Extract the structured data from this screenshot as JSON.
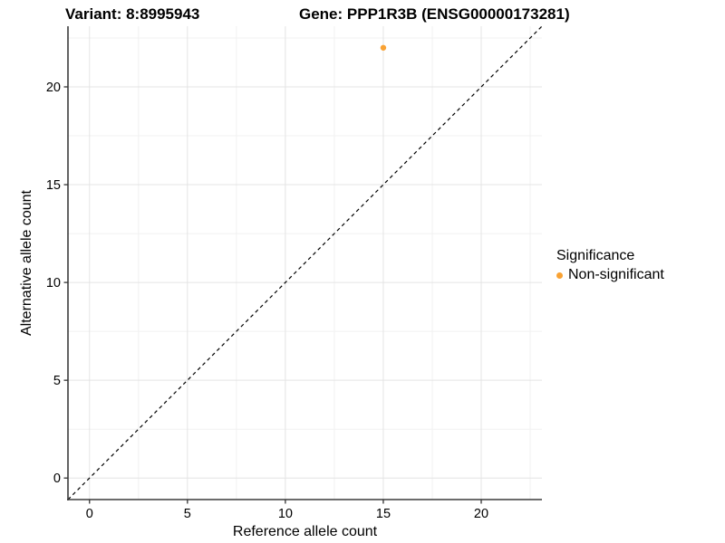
{
  "header": {
    "title_variant": "Variant: 8:8995943",
    "title_gene": "Gene: PPP1R3B (ENSG00000173281)"
  },
  "chart_data": {
    "type": "scatter",
    "title_left": "Variant: 8:8995943",
    "title_right": "Gene: PPP1R3B (ENSG00000173281)",
    "xlabel": "Reference allele count",
    "ylabel": "Alternative allele count",
    "xlim": [
      0,
      22
    ],
    "ylim": [
      0,
      22
    ],
    "expansion": 0.05,
    "x_ticks": [
      0,
      5,
      10,
      15,
      20
    ],
    "y_ticks": [
      0,
      5,
      10,
      15,
      20
    ],
    "x_minor_ticks": [
      2.5,
      7.5,
      12.5,
      17.5,
      22.5
    ],
    "y_minor_ticks": [
      2.5,
      7.5,
      12.5,
      17.5,
      22.5
    ],
    "grid": "major-and-minor",
    "series": [
      {
        "name": "Non-significant",
        "color": "#F9A233",
        "points": [
          {
            "x": 15,
            "y": 22
          }
        ]
      }
    ],
    "reference_line": {
      "kind": "identity",
      "slope": 1,
      "intercept": 0,
      "style": "dashed",
      "color": "#000000"
    },
    "legend": {
      "title": "Significance",
      "position": "right",
      "entries": [
        {
          "label": "Non-significant",
          "color": "#F9A233"
        }
      ]
    }
  },
  "colors": {
    "background": "#FFFFFF",
    "panel_background": "#FFFFFF",
    "grid_major": "#E4E4E4",
    "grid_minor": "#F1F1F1",
    "axis_line": "#3C3C3C",
    "tick_mark": "#333333",
    "text": "#000000",
    "point": "#F9A233",
    "reference_line": "#000000"
  }
}
